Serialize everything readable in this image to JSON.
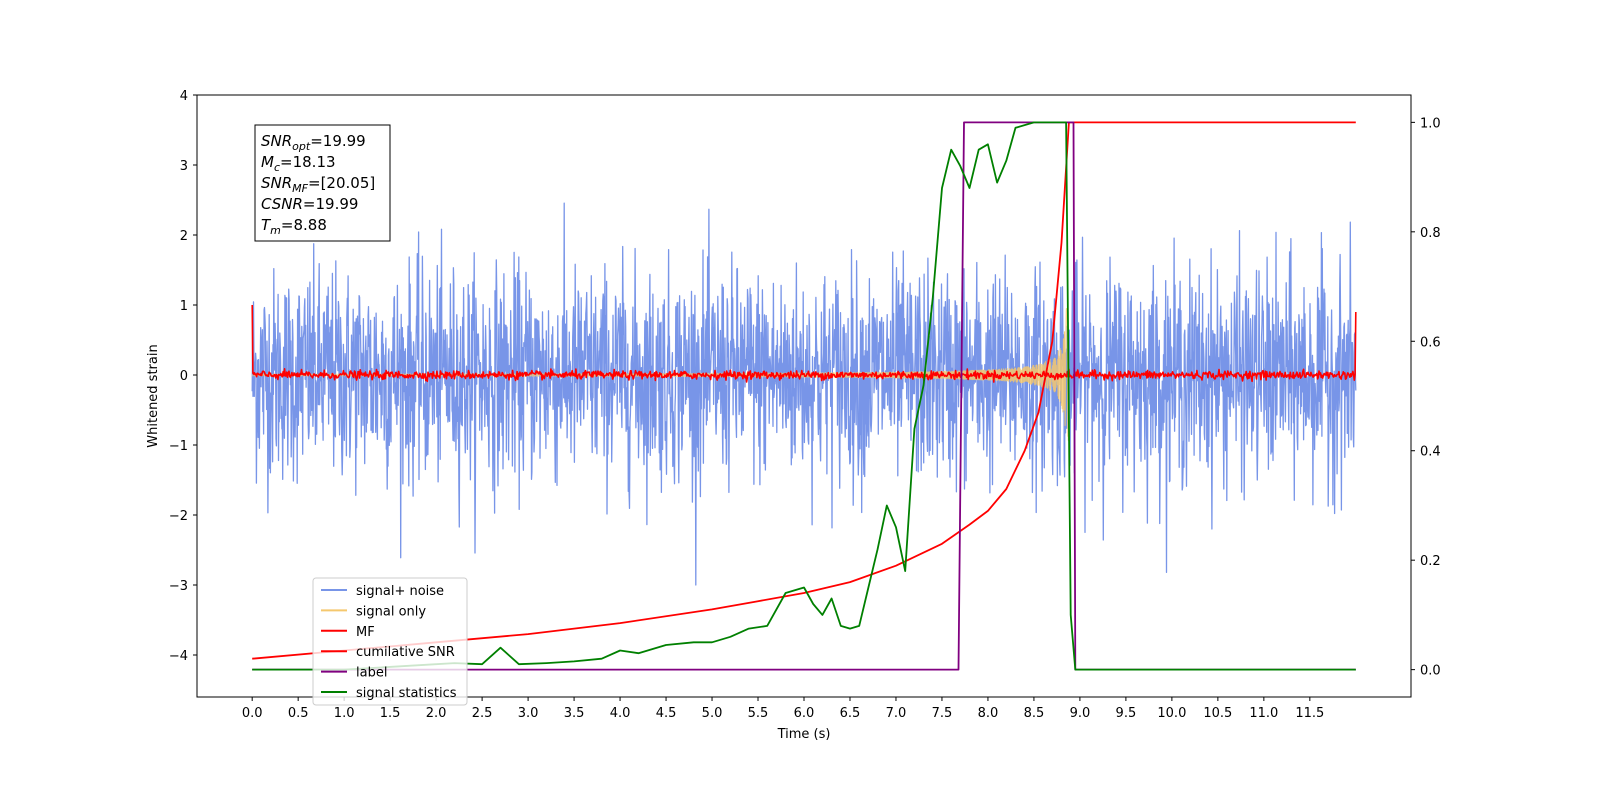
{
  "chart_data": {
    "type": "line",
    "xlabel": "Time (s)",
    "ylabel": "Whitened strain",
    "xlim": [
      -0.6,
      12.6
    ],
    "ylim": [
      -4.6,
      4.0
    ],
    "ylim_right": [
      -0.05,
      1.05
    ],
    "x_ticks": [
      0.0,
      0.5,
      1.0,
      1.5,
      2.0,
      2.5,
      3.0,
      3.5,
      4.0,
      4.5,
      5.0,
      5.5,
      6.0,
      6.5,
      7.0,
      7.5,
      8.0,
      8.5,
      9.0,
      9.5,
      10.0,
      10.5,
      11.0,
      11.5
    ],
    "x_tick_labels": [
      "0.0",
      "0.5",
      "1.0",
      "1.5",
      "2.0",
      "2.5",
      "3.0",
      "3.5",
      "4.0",
      "4.5",
      "5.0",
      "5.5",
      "6.0",
      "6.5",
      "7.0",
      "7.5",
      "8.0",
      "8.5",
      "9.0",
      "9.5",
      "10.0",
      "10.5",
      "11.0",
      "11.5"
    ],
    "y_ticks_left": [
      4,
      3,
      2,
      1,
      0,
      -1,
      -2,
      -3,
      -4
    ],
    "y_tick_labels_left": [
      "4",
      "3",
      "2",
      "1",
      "0",
      "−1",
      "−2",
      "−3",
      "−4"
    ],
    "y_ticks_right": [
      1.0,
      0.8,
      0.6,
      0.4,
      0.2,
      0.0
    ],
    "y_tick_labels_right": [
      "1.0",
      "0.8",
      "0.6",
      "0.4",
      "0.2",
      "0.0"
    ],
    "grid": false,
    "legend_position": "lower-left",
    "annotation_box": {
      "position": "top-left",
      "lines": [
        {
          "base": "SNR",
          "sub": "opt",
          "rest": "=19.99"
        },
        {
          "base": "M",
          "sub": "c",
          "rest": "=18.13"
        },
        {
          "base": "SNR",
          "sub": "MF",
          "rest": "=[20.05]"
        },
        {
          "base": "CSNR",
          "sub": "",
          "rest": "=19.99"
        },
        {
          "base": "T",
          "sub": "m",
          "rest": "=8.88"
        }
      ]
    },
    "series": [
      {
        "name": "signal+ noise",
        "axis": "left",
        "color": "#7895e8",
        "noise": true,
        "x_range": [
          0.0,
          12.0
        ],
        "amplitude_std": 0.75,
        "max_abs": 3.0
      },
      {
        "name": "signal only",
        "axis": "left",
        "color": "#f5c86e",
        "chirp": true,
        "x_range": [
          0.0,
          8.88
        ],
        "envelope_peak": 0.95,
        "merger_time": 8.88
      },
      {
        "name": "MF",
        "axis": "left",
        "color": "#ff0000",
        "noise": true,
        "x_range": [
          0.0,
          12.0
        ],
        "amplitude_std": 0.03,
        "edge_start": 1.0,
        "edge_end": 0.9
      },
      {
        "name": "cumilative SNR",
        "axis": "right",
        "color": "#ff0000",
        "x": [
          0.0,
          1.0,
          2.0,
          3.0,
          4.0,
          5.0,
          5.5,
          6.0,
          6.5,
          7.0,
          7.5,
          7.8,
          8.0,
          8.2,
          8.4,
          8.55,
          8.7,
          8.8,
          8.88,
          9.0,
          12.0
        ],
        "y": [
          0.02,
          0.035,
          0.05,
          0.065,
          0.085,
          0.11,
          0.125,
          0.14,
          0.16,
          0.19,
          0.23,
          0.265,
          0.29,
          0.33,
          0.4,
          0.47,
          0.6,
          0.78,
          1.0,
          1.0,
          1.0
        ]
      },
      {
        "name": "label",
        "axis": "right",
        "color": "#800080",
        "x": [
          0.0,
          7.68,
          7.74,
          8.93,
          8.95,
          11.0,
          12.0
        ],
        "y": [
          0.0,
          0.0,
          1.0,
          1.0,
          0.0,
          0.0,
          0.0
        ]
      },
      {
        "name": "signal statistics",
        "axis": "right",
        "color": "#008000",
        "x": [
          0.0,
          1.0,
          2.0,
          2.2,
          2.5,
          2.7,
          2.9,
          3.2,
          3.5,
          3.8,
          4.0,
          4.2,
          4.5,
          4.8,
          5.0,
          5.2,
          5.4,
          5.6,
          5.8,
          6.0,
          6.1,
          6.2,
          6.3,
          6.4,
          6.5,
          6.6,
          6.7,
          6.8,
          6.9,
          7.0,
          7.1,
          7.2,
          7.3,
          7.4,
          7.5,
          7.6,
          7.7,
          7.8,
          7.9,
          8.0,
          8.1,
          8.2,
          8.3,
          8.5,
          8.7,
          8.85,
          8.9,
          8.95,
          9.0,
          12.0
        ],
        "y": [
          0.0,
          0.0,
          0.01,
          0.012,
          0.01,
          0.04,
          0.01,
          0.012,
          0.015,
          0.02,
          0.035,
          0.03,
          0.045,
          0.05,
          0.05,
          0.06,
          0.075,
          0.08,
          0.14,
          0.15,
          0.12,
          0.1,
          0.13,
          0.08,
          0.075,
          0.08,
          0.15,
          0.22,
          0.3,
          0.26,
          0.18,
          0.44,
          0.52,
          0.68,
          0.88,
          0.95,
          0.92,
          0.88,
          0.95,
          0.96,
          0.89,
          0.93,
          0.99,
          1.0,
          1.0,
          1.0,
          0.1,
          0.0,
          0.0,
          0.0
        ]
      }
    ]
  }
}
